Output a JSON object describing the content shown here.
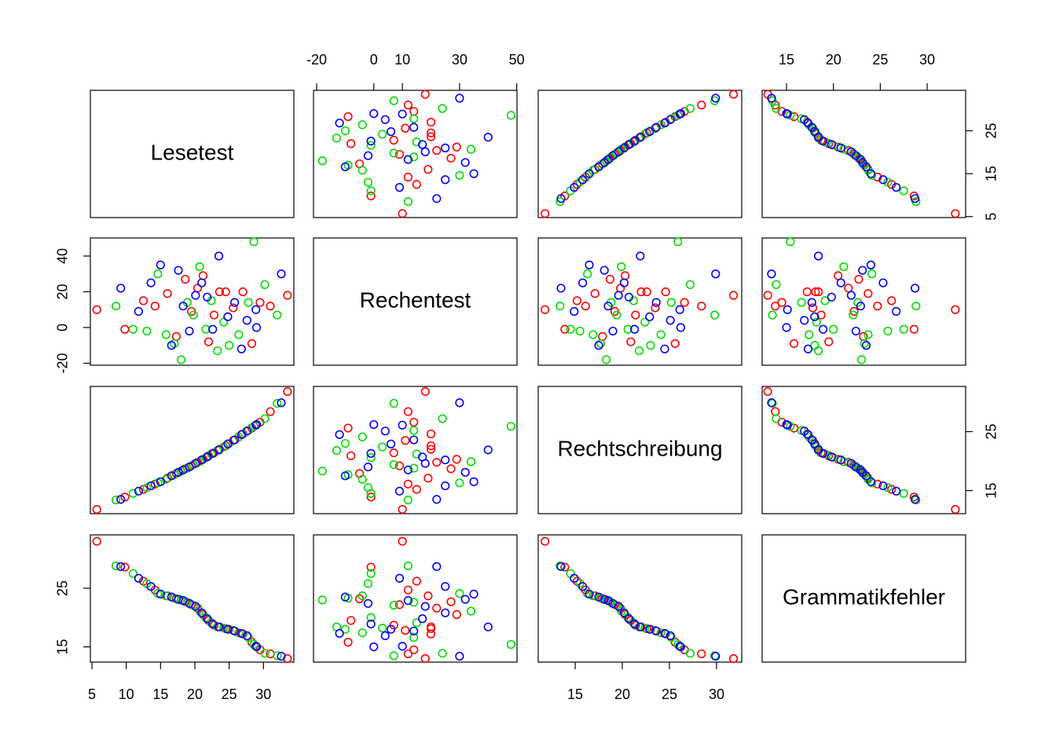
{
  "chart_data": {
    "type": "scatter-matrix",
    "variables": [
      {
        "name": "Lesetest",
        "lim": [
          4.77,
          34.43
        ],
        "ticks": {
          "bottom": [
            5,
            10,
            15,
            20,
            25,
            30
          ],
          "right": [
            5,
            15,
            25
          ]
        }
      },
      {
        "name": "Rechentest",
        "lim": [
          -21.1,
          50.1
        ],
        "ticks": {
          "top": [
            -20,
            0,
            10,
            30,
            50
          ],
          "left": [
            -20,
            0,
            20,
            40
          ]
        }
      },
      {
        "name": "Rechtschreibung",
        "lim": [
          11.08,
          32.67
        ],
        "ticks": {
          "bottom": [
            15,
            20,
            25,
            30
          ],
          "right": [
            15,
            25
          ]
        }
      },
      {
        "name": "Grammatikfehler",
        "lim": [
          12.4,
          34.1
        ],
        "ticks": {
          "top": [
            15,
            20,
            25,
            30
          ],
          "left": [
            15,
            25
          ]
        }
      }
    ],
    "series": [
      {
        "color": "#ff0000",
        "values": [
          [
            5.7,
            10,
            11.8,
            33.0
          ],
          [
            9.8,
            -1,
            13.9,
            28.6
          ],
          [
            12.5,
            15,
            15.2,
            26.2
          ],
          [
            14.2,
            12,
            16.1,
            24.7
          ],
          [
            16.0,
            19,
            17.1,
            23.7
          ],
          [
            17.3,
            -5,
            17.9,
            23.2
          ],
          [
            18.6,
            27,
            18.7,
            22.7
          ],
          [
            19.5,
            9,
            19.2,
            22.2
          ],
          [
            20.4,
            22,
            19.8,
            21.6
          ],
          [
            21.2,
            29,
            20.3,
            20.5
          ],
          [
            22.0,
            -8,
            20.9,
            19.5
          ],
          [
            22.8,
            7,
            21.4,
            18.7
          ],
          [
            23.6,
            20,
            22.0,
            18.4
          ],
          [
            24.5,
            20,
            22.6,
            18.1
          ],
          [
            25.6,
            11,
            23.5,
            17.8
          ],
          [
            27.0,
            20,
            24.6,
            17.2
          ],
          [
            28.3,
            -9,
            25.6,
            15.8
          ],
          [
            29.5,
            14,
            26.6,
            14.5
          ],
          [
            31.0,
            12,
            28.4,
            13.8
          ],
          [
            33.5,
            18,
            31.8,
            13.0
          ]
        ]
      },
      {
        "color": "#00dd00",
        "values": [
          [
            8.5,
            12,
            13.4,
            28.8
          ],
          [
            11.0,
            -1,
            14.5,
            27.5
          ],
          [
            13.0,
            -2,
            15.5,
            25.8
          ],
          [
            14.6,
            30,
            16.3,
            24.1
          ],
          [
            15.8,
            -4,
            16.9,
            23.7
          ],
          [
            17.0,
            -9,
            17.7,
            23.3
          ],
          [
            18.0,
            -18,
            18.3,
            23.0
          ],
          [
            18.9,
            14,
            18.8,
            22.6
          ],
          [
            19.8,
            7,
            19.4,
            22.1
          ],
          [
            20.7,
            34,
            19.9,
            21.1
          ],
          [
            21.6,
            -1,
            20.6,
            20.0
          ],
          [
            22.4,
            15,
            21.2,
            19.1
          ],
          [
            23.3,
            -13,
            21.8,
            18.4
          ],
          [
            24.2,
            3,
            22.4,
            18.2
          ],
          [
            25.0,
            -10,
            23.0,
            18.0
          ],
          [
            26.4,
            -4,
            24.1,
            17.4
          ],
          [
            27.8,
            14,
            25.2,
            16.6
          ],
          [
            28.6,
            48,
            25.9,
            15.4
          ],
          [
            30.2,
            24,
            27.2,
            13.9
          ],
          [
            32.0,
            7,
            29.8,
            13.5
          ]
        ]
      },
      {
        "color": "#0000ff",
        "values": [
          [
            9.2,
            22,
            13.5,
            28.7
          ],
          [
            11.8,
            9,
            14.9,
            26.7
          ],
          [
            13.6,
            25,
            15.8,
            25.3
          ],
          [
            15.0,
            35,
            16.5,
            24.0
          ],
          [
            16.6,
            -10,
            17.5,
            23.5
          ],
          [
            17.6,
            32,
            18.1,
            23.1
          ],
          [
            18.3,
            12,
            18.5,
            22.9
          ],
          [
            19.2,
            -2,
            19.0,
            22.4
          ],
          [
            20.1,
            18,
            19.6,
            21.9
          ],
          [
            21.0,
            25,
            20.2,
            20.8
          ],
          [
            21.8,
            17,
            20.7,
            19.8
          ],
          [
            22.6,
            -1,
            21.3,
            18.9
          ],
          [
            23.5,
            40,
            21.9,
            18.4
          ],
          [
            24.8,
            6,
            22.9,
            18.0
          ],
          [
            25.8,
            14,
            23.6,
            17.7
          ],
          [
            26.8,
            -12,
            24.5,
            17.3
          ],
          [
            27.6,
            4,
            25.1,
            16.9
          ],
          [
            28.9,
            10,
            26.1,
            15.1
          ],
          [
            29.0,
            0,
            26.2,
            15.0
          ],
          [
            32.6,
            30,
            29.9,
            13.4
          ]
        ]
      }
    ]
  }
}
